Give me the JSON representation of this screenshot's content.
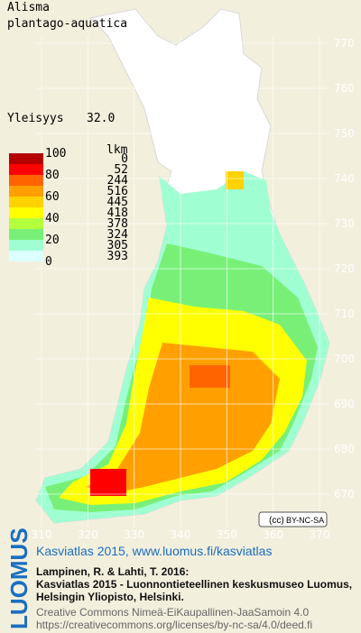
{
  "title": [
    "Alisma",
    "plantago-aquatica"
  ],
  "frequency": {
    "label": "Yleisyys",
    "value": "32.0"
  },
  "legend": {
    "scale_labels": [
      100,
      80,
      60,
      40,
      20,
      0
    ],
    "count_header": "lkm",
    "counts": [
      0,
      52,
      244,
      516,
      445,
      418,
      378,
      324,
      305,
      393
    ],
    "colors": [
      "#b40000",
      "#ff0000",
      "#ff6400",
      "#ffa000",
      "#ffd200",
      "#ffff00",
      "#b4ff3c",
      "#78f078",
      "#a0ffd2",
      "#dcffff",
      "#ffffff"
    ]
  },
  "map_grid": {
    "northing": [
      770,
      760,
      750,
      740,
      730,
      720,
      710,
      700,
      690,
      680,
      670
    ],
    "easting": [
      310,
      320,
      330,
      340,
      350,
      360,
      370
    ]
  },
  "license_badge": "BY-NC-SA",
  "footer": {
    "logo": "LUOMUS",
    "headline": "Kasviatlas 2015, www.luomus.fi/kasviatlas",
    "citation": [
      "Lampinen, R. & Lahti, T. 2016:",
      "Kasviatlas 2015 - Luonnontieteellinen keskusmuseo Luomus,",
      "Helsingin Yliopisto, Helsinki."
    ],
    "license": [
      "Creative Commons Nimeä-EiKaupallinen-JaaSamoin 4.0",
      "https://creativecommons.org/licenses/by-nc-sa/4.0/deed.fi"
    ]
  }
}
